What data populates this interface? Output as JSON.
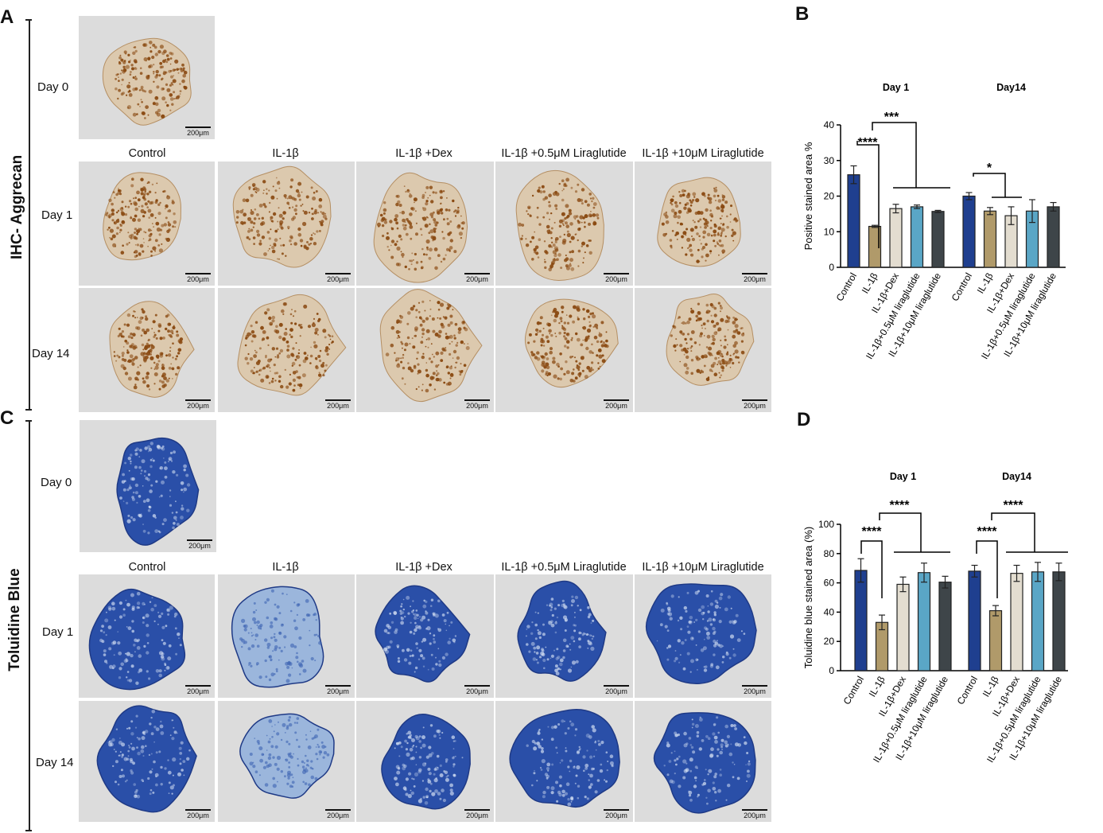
{
  "panels": {
    "A": "A",
    "B": "B",
    "C": "C",
    "D": "D"
  },
  "side_titles": {
    "ihc": "IHC- Aggrecan",
    "tb": "Toluidine Blue"
  },
  "row_labels": {
    "day0": "Day 0",
    "day1": "Day 1",
    "day14": "Day 14"
  },
  "columns": [
    "Control",
    "IL-1β",
    "IL-1β +Dex",
    "IL-1β +0.5μM Liraglutide",
    "IL-1β +10μM Liraglutide"
  ],
  "scale_bar": "200μm",
  "colors": {
    "control": "#1f3f8f",
    "il1b": "#b09a6a",
    "dex": "#e3ddd0",
    "lira05": "#5aa6c6",
    "lira10": "#3e4549",
    "ihc_stain": "#8a4a12",
    "ihc_tissue": "#dcc9ae",
    "tb_stain": "#2a4fa8"
  },
  "chart_data": [
    {
      "type": "bar",
      "panel": "B",
      "ylabel": "Positive stained area %",
      "ylim": [
        0,
        40
      ],
      "yticks": [
        0,
        10,
        20,
        30,
        40
      ],
      "groups": [
        "Day 1",
        "Day14"
      ],
      "categories": [
        "Control",
        "IL-1β",
        "IL-1β+Dex",
        "IL-1β+0.5μM liraglutide",
        "IL-1β+10μM liraglutide"
      ],
      "series": [
        {
          "group": "Day 1",
          "values": [
            26,
            11.5,
            16.5,
            17,
            15.7
          ],
          "errors": [
            2.5,
            0.3,
            1.2,
            0.5,
            0.3
          ]
        },
        {
          "group": "Day14",
          "values": [
            20,
            15.8,
            14.5,
            15.8,
            17
          ],
          "errors": [
            1,
            1,
            2.5,
            3.2,
            1.2
          ]
        }
      ],
      "significance": [
        {
          "group": "Day 1",
          "label": "****"
        },
        {
          "group": "Day 1",
          "label": "***"
        },
        {
          "group": "Day14",
          "label": "*"
        }
      ],
      "grid": false
    },
    {
      "type": "bar",
      "panel": "D",
      "ylabel": "Toluidine blue stained area (%)",
      "ylim": [
        0,
        100
      ],
      "yticks": [
        0,
        20,
        40,
        60,
        80,
        100
      ],
      "groups": [
        "Day 1",
        "Day14"
      ],
      "categories": [
        "Control",
        "IL-1β",
        "IL-1β+Dex",
        "IL-1β+0.5μM liraglutide",
        "IL-1β+10μM liraglutide"
      ],
      "series": [
        {
          "group": "Day 1",
          "values": [
            68.5,
            33,
            59,
            67,
            60.5
          ],
          "errors": [
            8,
            5,
            5,
            6.5,
            4
          ]
        },
        {
          "group": "Day14",
          "values": [
            68,
            41,
            66.5,
            67.5,
            67.5
          ],
          "errors": [
            4,
            3.5,
            5.5,
            6.5,
            6
          ]
        }
      ],
      "significance": [
        {
          "group": "Day 1",
          "label": "****"
        },
        {
          "group": "Day 1",
          "label": "****"
        },
        {
          "group": "Day14",
          "label": "****"
        },
        {
          "group": "Day14",
          "label": "****"
        }
      ],
      "grid": false
    }
  ]
}
